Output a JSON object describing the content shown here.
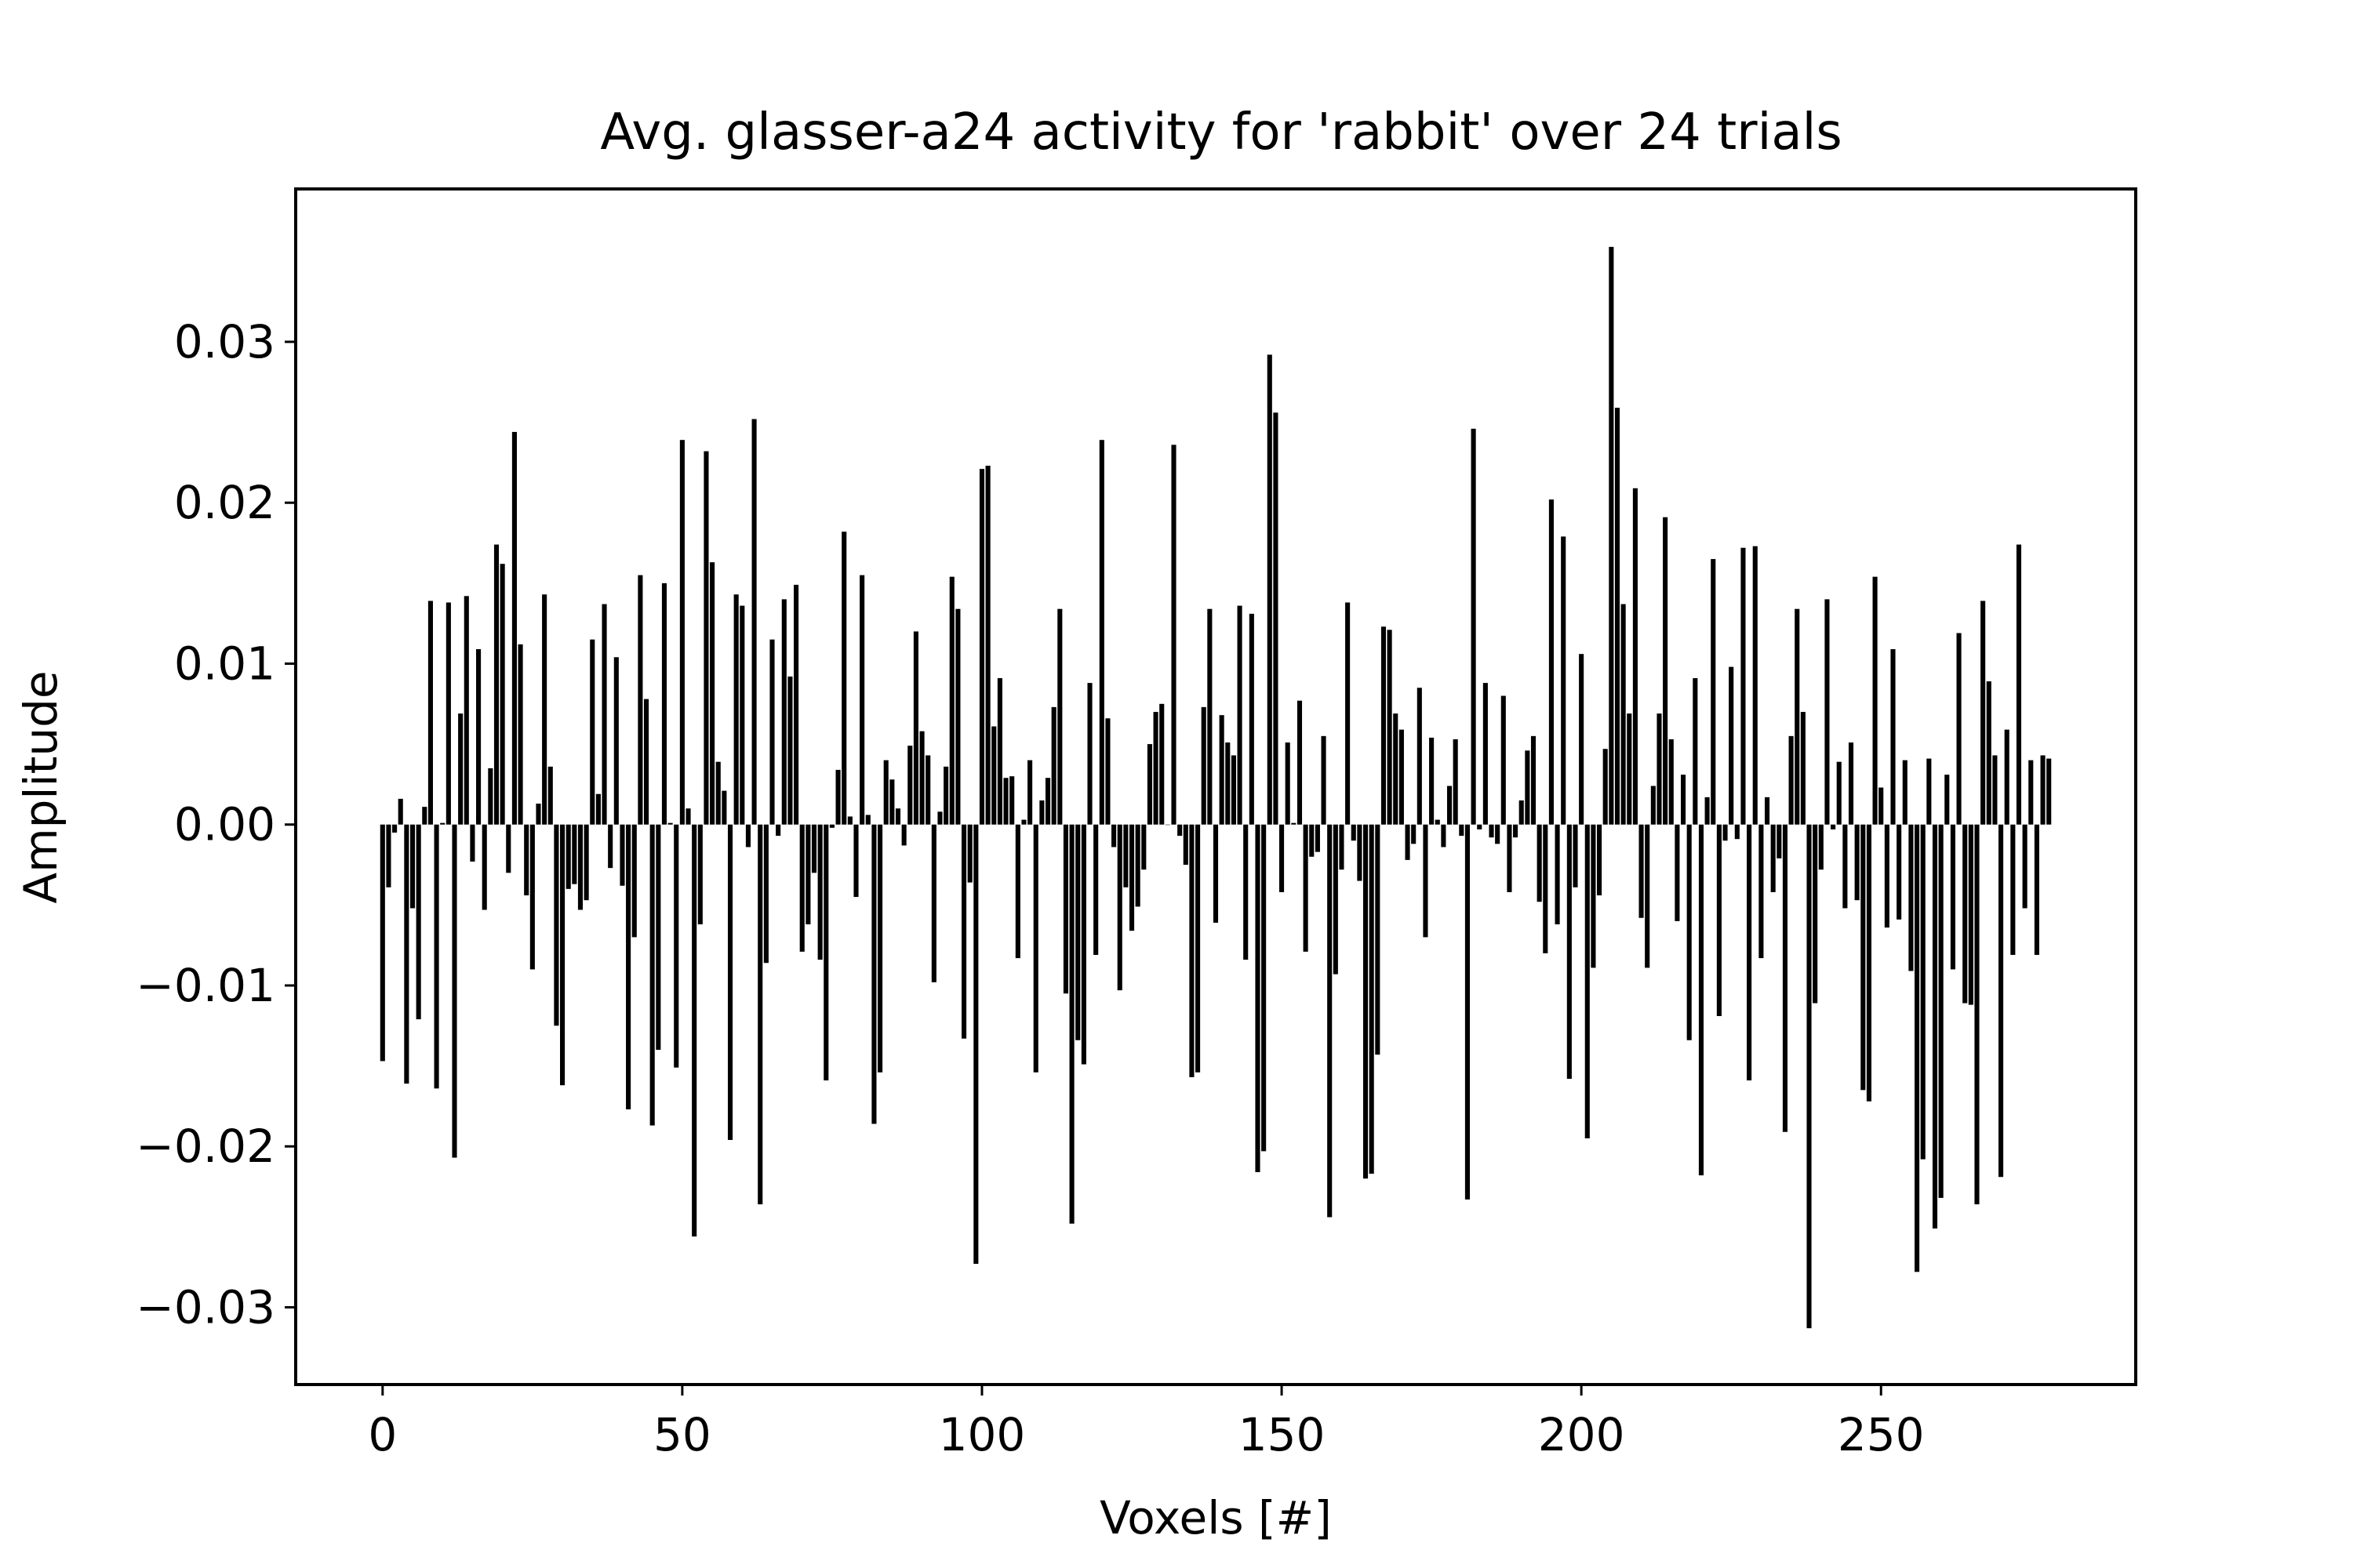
{
  "chart_data": {
    "type": "bar",
    "title": "Avg. glasser-a24 activity for 'rabbit' over 24 trials",
    "xlabel": "Voxels [#]",
    "ylabel": "Amplitude",
    "xlim": [
      -14.5,
      292.5
    ],
    "ylim": [
      -0.0348,
      0.0395
    ],
    "xticks": [
      0,
      50,
      100,
      150,
      200,
      250
    ],
    "xtick_labels": [
      "0",
      "50",
      "100",
      "150",
      "200",
      "250"
    ],
    "yticks": [
      -0.03,
      -0.02,
      -0.01,
      0.0,
      0.01,
      0.02,
      0.03
    ],
    "ytick_labels": [
      "−0.03",
      "−0.02",
      "−0.01",
      "0.00",
      "0.01",
      "0.02",
      "0.03"
    ],
    "grid": false,
    "bar_color": "#000000",
    "series": [
      {
        "values": [
          -0.0147,
          -0.0039,
          -0.0005,
          0.0016,
          -0.0161,
          -0.0052,
          -0.0121,
          0.0011,
          0.0139,
          -0.0164,
          0.0001,
          0.0138,
          -0.0207,
          0.0069,
          0.0142,
          -0.0023,
          0.0109,
          -0.0053,
          0.0035,
          0.0174,
          0.0162,
          -0.003,
          0.0244,
          0.0112,
          -0.0044,
          -0.009,
          0.0013,
          0.0143,
          0.0036,
          -0.0125,
          -0.0162,
          -0.004,
          -0.0037,
          -0.0053,
          -0.0047,
          0.0115,
          0.0019,
          0.0137,
          -0.0027,
          0.0104,
          -0.0038,
          -0.0177,
          -0.007,
          0.0155,
          0.0078,
          -0.0187,
          -0.014,
          0.015,
          0.0001,
          -0.0151,
          0.0239,
          0.001,
          -0.0256,
          -0.0062,
          0.0232,
          0.0163,
          0.0039,
          0.0021,
          -0.0196,
          0.0143,
          0.0136,
          -0.0014,
          0.0252,
          -0.0236,
          -0.0086,
          0.0115,
          -0.0007,
          0.014,
          0.0092,
          0.0149,
          -0.0079,
          -0.0062,
          -0.003,
          -0.0084,
          -0.0159,
          -0.0002,
          0.0034,
          0.0182,
          0.0005,
          -0.0045,
          0.0155,
          0.0006,
          -0.0186,
          -0.0154,
          0.004,
          0.0028,
          0.001,
          -0.0013,
          0.0049,
          0.012,
          0.0058,
          0.0043,
          -0.0098,
          0.0008,
          0.0036,
          0.0154,
          0.0134,
          -0.0133,
          -0.0036,
          -0.0273,
          0.0221,
          0.0223,
          0.0061,
          0.0091,
          0.0029,
          0.003,
          -0.0083,
          0.0003,
          0.004,
          -0.0154,
          0.0015,
          0.0029,
          0.0073,
          0.0134,
          -0.0105,
          -0.0248,
          -0.0134,
          -0.0149,
          0.0088,
          -0.0081,
          0.0239,
          0.0066,
          -0.0014,
          -0.0103,
          -0.0039,
          -0.0066,
          -0.0051,
          -0.0028,
          0.005,
          0.007,
          0.0075,
          0.0,
          0.0236,
          -0.0007,
          -0.0025,
          -0.0157,
          -0.0154,
          0.0073,
          0.0134,
          -0.0061,
          0.0068,
          0.0051,
          0.0043,
          0.0136,
          -0.0084,
          0.0131,
          -0.0216,
          -0.0203,
          0.0292,
          0.0256,
          -0.0042,
          0.0051,
          0.0001,
          0.0077,
          -0.0079,
          -0.002,
          -0.0017,
          0.0055,
          -0.0244,
          -0.0093,
          -0.0028,
          0.0138,
          -0.001,
          -0.0035,
          -0.022,
          -0.0217,
          -0.0143,
          0.0123,
          0.0121,
          0.0069,
          0.0059,
          -0.0022,
          -0.0012,
          0.0085,
          -0.007,
          0.0054,
          0.0003,
          -0.0014,
          0.0024,
          0.0053,
          -0.0007,
          -0.0233,
          0.0246,
          -0.0003,
          0.0088,
          -0.0008,
          -0.0012,
          0.008,
          -0.0042,
          -0.0008,
          0.0015,
          0.0046,
          0.0055,
          -0.0048,
          -0.008,
          0.0202,
          -0.0062,
          0.0179,
          -0.0158,
          -0.0039,
          0.0106,
          -0.0195,
          -0.0089,
          -0.0044,
          0.0047,
          0.0359,
          0.0259,
          0.0137,
          0.0069,
          0.0209,
          -0.0058,
          -0.0089,
          0.0024,
          0.0069,
          0.0191,
          0.0053,
          -0.006,
          0.0031,
          -0.0134,
          0.0091,
          -0.0218,
          0.0017,
          0.0165,
          -0.0119,
          -0.001,
          0.0098,
          -0.0009,
          0.0172,
          -0.0159,
          0.0173,
          -0.0083,
          0.0017,
          -0.0042,
          -0.0021,
          -0.0191,
          0.0055,
          0.0134,
          0.007,
          -0.0313,
          -0.0111,
          -0.0028,
          0.014,
          -0.0003,
          0.0039,
          -0.0052,
          0.0051,
          -0.0047,
          -0.0165,
          -0.0172,
          0.0154,
          0.0023,
          -0.0064,
          0.0109,
          -0.0059,
          0.004,
          -0.0091,
          -0.0278,
          -0.0208,
          0.0041,
          -0.0251,
          -0.0232,
          0.0031,
          -0.009,
          0.0119,
          -0.0111,
          -0.0112,
          -0.0236,
          0.0139,
          0.0089,
          0.0043,
          -0.0219,
          0.0059,
          -0.0081,
          0.0174,
          -0.0052,
          0.004,
          -0.0081,
          0.0043,
          0.0041
        ]
      }
    ]
  }
}
